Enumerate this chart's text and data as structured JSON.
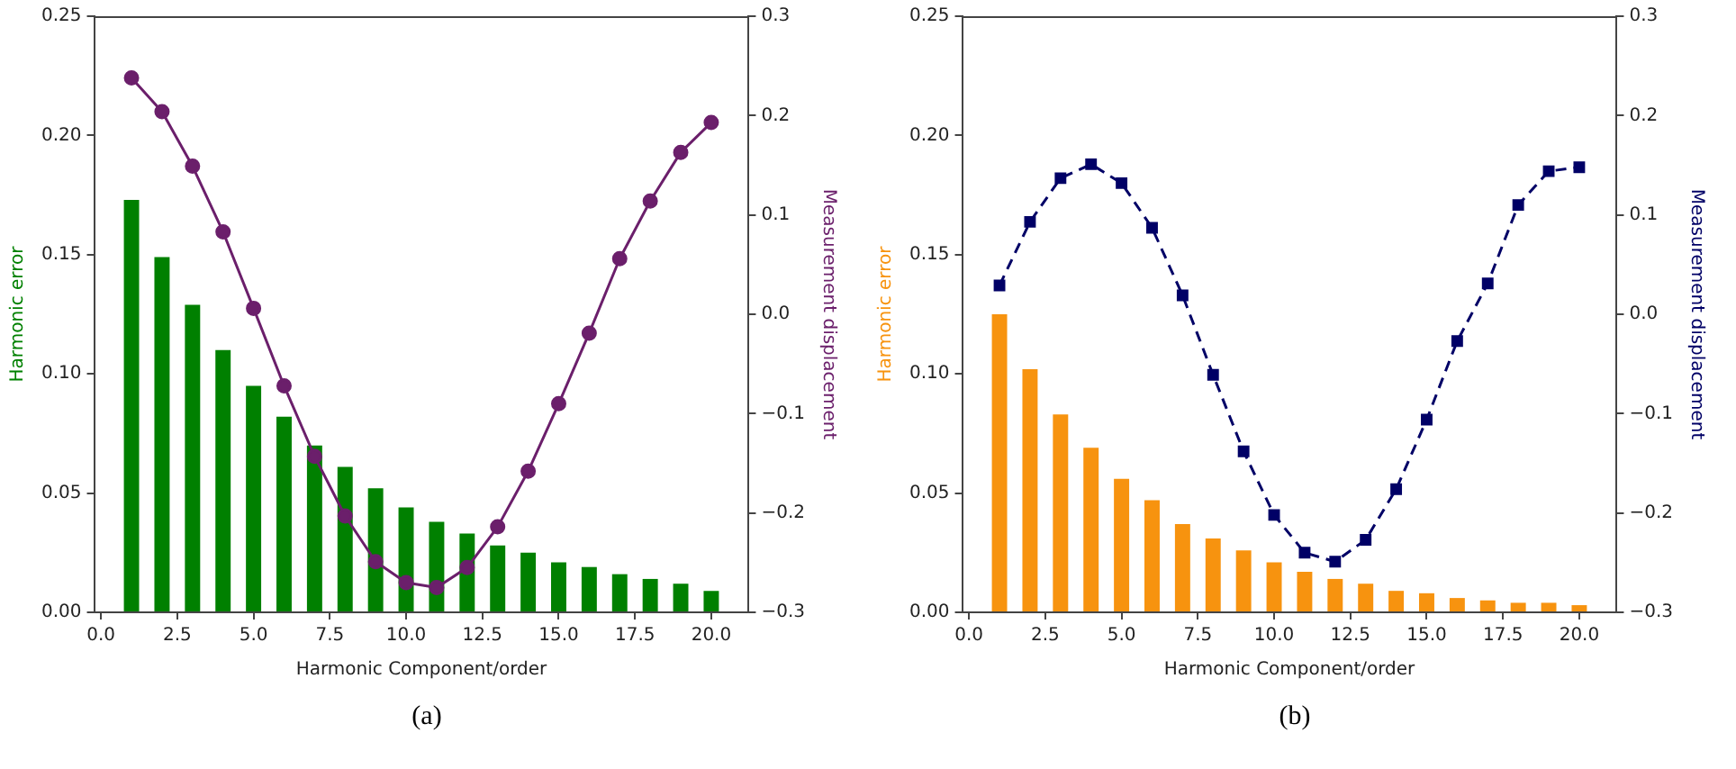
{
  "chart_data": [
    {
      "type": "bar",
      "annotations": [
        "(a)"
      ],
      "xlabel": "Harmonic Component/order",
      "ylabel": "Harmonic error",
      "y2label": "Measurement displacement",
      "x": [
        1,
        2,
        3,
        4,
        5,
        6,
        7,
        8,
        9,
        10,
        11,
        12,
        13,
        14,
        15,
        16,
        17,
        18,
        19,
        20
      ],
      "series": [
        {
          "color": "#008000",
          "values": [
            0.173,
            0.149,
            0.129,
            0.11,
            0.095,
            0.082,
            0.07,
            0.061,
            0.052,
            0.044,
            0.038,
            0.033,
            0.028,
            0.025,
            0.021,
            0.019,
            0.016,
            0.014,
            0.012,
            0.009
          ]
        },
        {
          "type": "line",
          "axis": "y2",
          "color": "#6b1f6b",
          "marker": "circle",
          "line_style": "solid",
          "values": [
            0.238,
            0.204,
            0.149,
            0.083,
            0.006,
            -0.072,
            -0.143,
            -0.203,
            -0.249,
            -0.27,
            -0.275,
            -0.255,
            -0.214,
            -0.158,
            -0.09,
            -0.019,
            0.056,
            0.114,
            0.163,
            0.193
          ]
        }
      ],
      "xlim": [
        -0.225,
        21.225
      ],
      "xticks": [
        {
          "value": 0,
          "label": "0.0"
        },
        2.5,
        {
          "value": 5,
          "label": "5.0"
        },
        7.5,
        {
          "value": 10,
          "label": "10.0"
        },
        12.5,
        {
          "value": 15,
          "label": "15.0"
        },
        17.5,
        {
          "value": 20,
          "label": "20.0"
        }
      ],
      "ylim": [
        0,
        0.25
      ],
      "yticks": [
        {
          "value": 0,
          "label": "0.00"
        },
        0.05,
        {
          "value": 0.1,
          "label": "0.10"
        },
        0.15,
        {
          "value": 0.2,
          "label": "0.20"
        },
        0.25
      ],
      "y2lim": [
        -0.3,
        0.3
      ],
      "y2ticks": [
        {
          "value": -0.3,
          "label": "−0.3"
        },
        {
          "value": -0.2,
          "label": "−0.2"
        },
        {
          "value": -0.1,
          "label": "−0.1"
        },
        {
          "value": 0,
          "label": "0.0"
        },
        0.1,
        0.2,
        0.3
      ],
      "grid": false,
      "legend": false
    },
    {
      "type": "bar",
      "annotations": [
        "(b)"
      ],
      "xlabel": "Harmonic Component/order",
      "ylabel": "Harmonic error",
      "y2label": "Measurement displacement",
      "x": [
        1,
        2,
        3,
        4,
        5,
        6,
        7,
        8,
        9,
        10,
        11,
        12,
        13,
        14,
        15,
        16,
        17,
        18,
        19,
        20
      ],
      "series": [
        {
          "color": "#f7930f",
          "values": [
            0.125,
            0.102,
            0.083,
            0.069,
            0.056,
            0.047,
            0.037,
            0.031,
            0.026,
            0.021,
            0.017,
            0.014,
            0.012,
            0.009,
            0.008,
            0.006,
            0.005,
            0.004,
            0.004,
            0.003
          ]
        },
        {
          "type": "line",
          "axis": "y2",
          "color": "#000066",
          "marker": "square",
          "line_style": "dashed",
          "values": [
            0.029,
            0.093,
            0.137,
            0.151,
            0.132,
            0.087,
            0.019,
            -0.061,
            -0.138,
            -0.202,
            -0.24,
            -0.249,
            -0.227,
            -0.176,
            -0.106,
            -0.027,
            0.031,
            0.11,
            0.144,
            0.148
          ]
        }
      ],
      "xlim": [
        -0.225,
        21.225
      ],
      "xticks": [
        {
          "value": 0,
          "label": "0.0"
        },
        2.5,
        {
          "value": 5,
          "label": "5.0"
        },
        7.5,
        {
          "value": 10,
          "label": "10.0"
        },
        12.5,
        {
          "value": 15,
          "label": "15.0"
        },
        17.5,
        {
          "value": 20,
          "label": "20.0"
        }
      ],
      "ylim": [
        0,
        0.25
      ],
      "yticks": [
        {
          "value": 0,
          "label": "0.00"
        },
        0.05,
        {
          "value": 0.1,
          "label": "0.10"
        },
        0.15,
        {
          "value": 0.2,
          "label": "0.20"
        },
        0.25
      ],
      "y2lim": [
        -0.3,
        0.3
      ],
      "y2ticks": [
        {
          "value": -0.3,
          "label": "−0.3"
        },
        {
          "value": -0.2,
          "label": "−0.2"
        },
        {
          "value": -0.1,
          "label": "−0.1"
        },
        {
          "value": 0,
          "label": "0.0"
        },
        0.1,
        0.2,
        0.3
      ],
      "grid": false,
      "legend": false
    }
  ]
}
